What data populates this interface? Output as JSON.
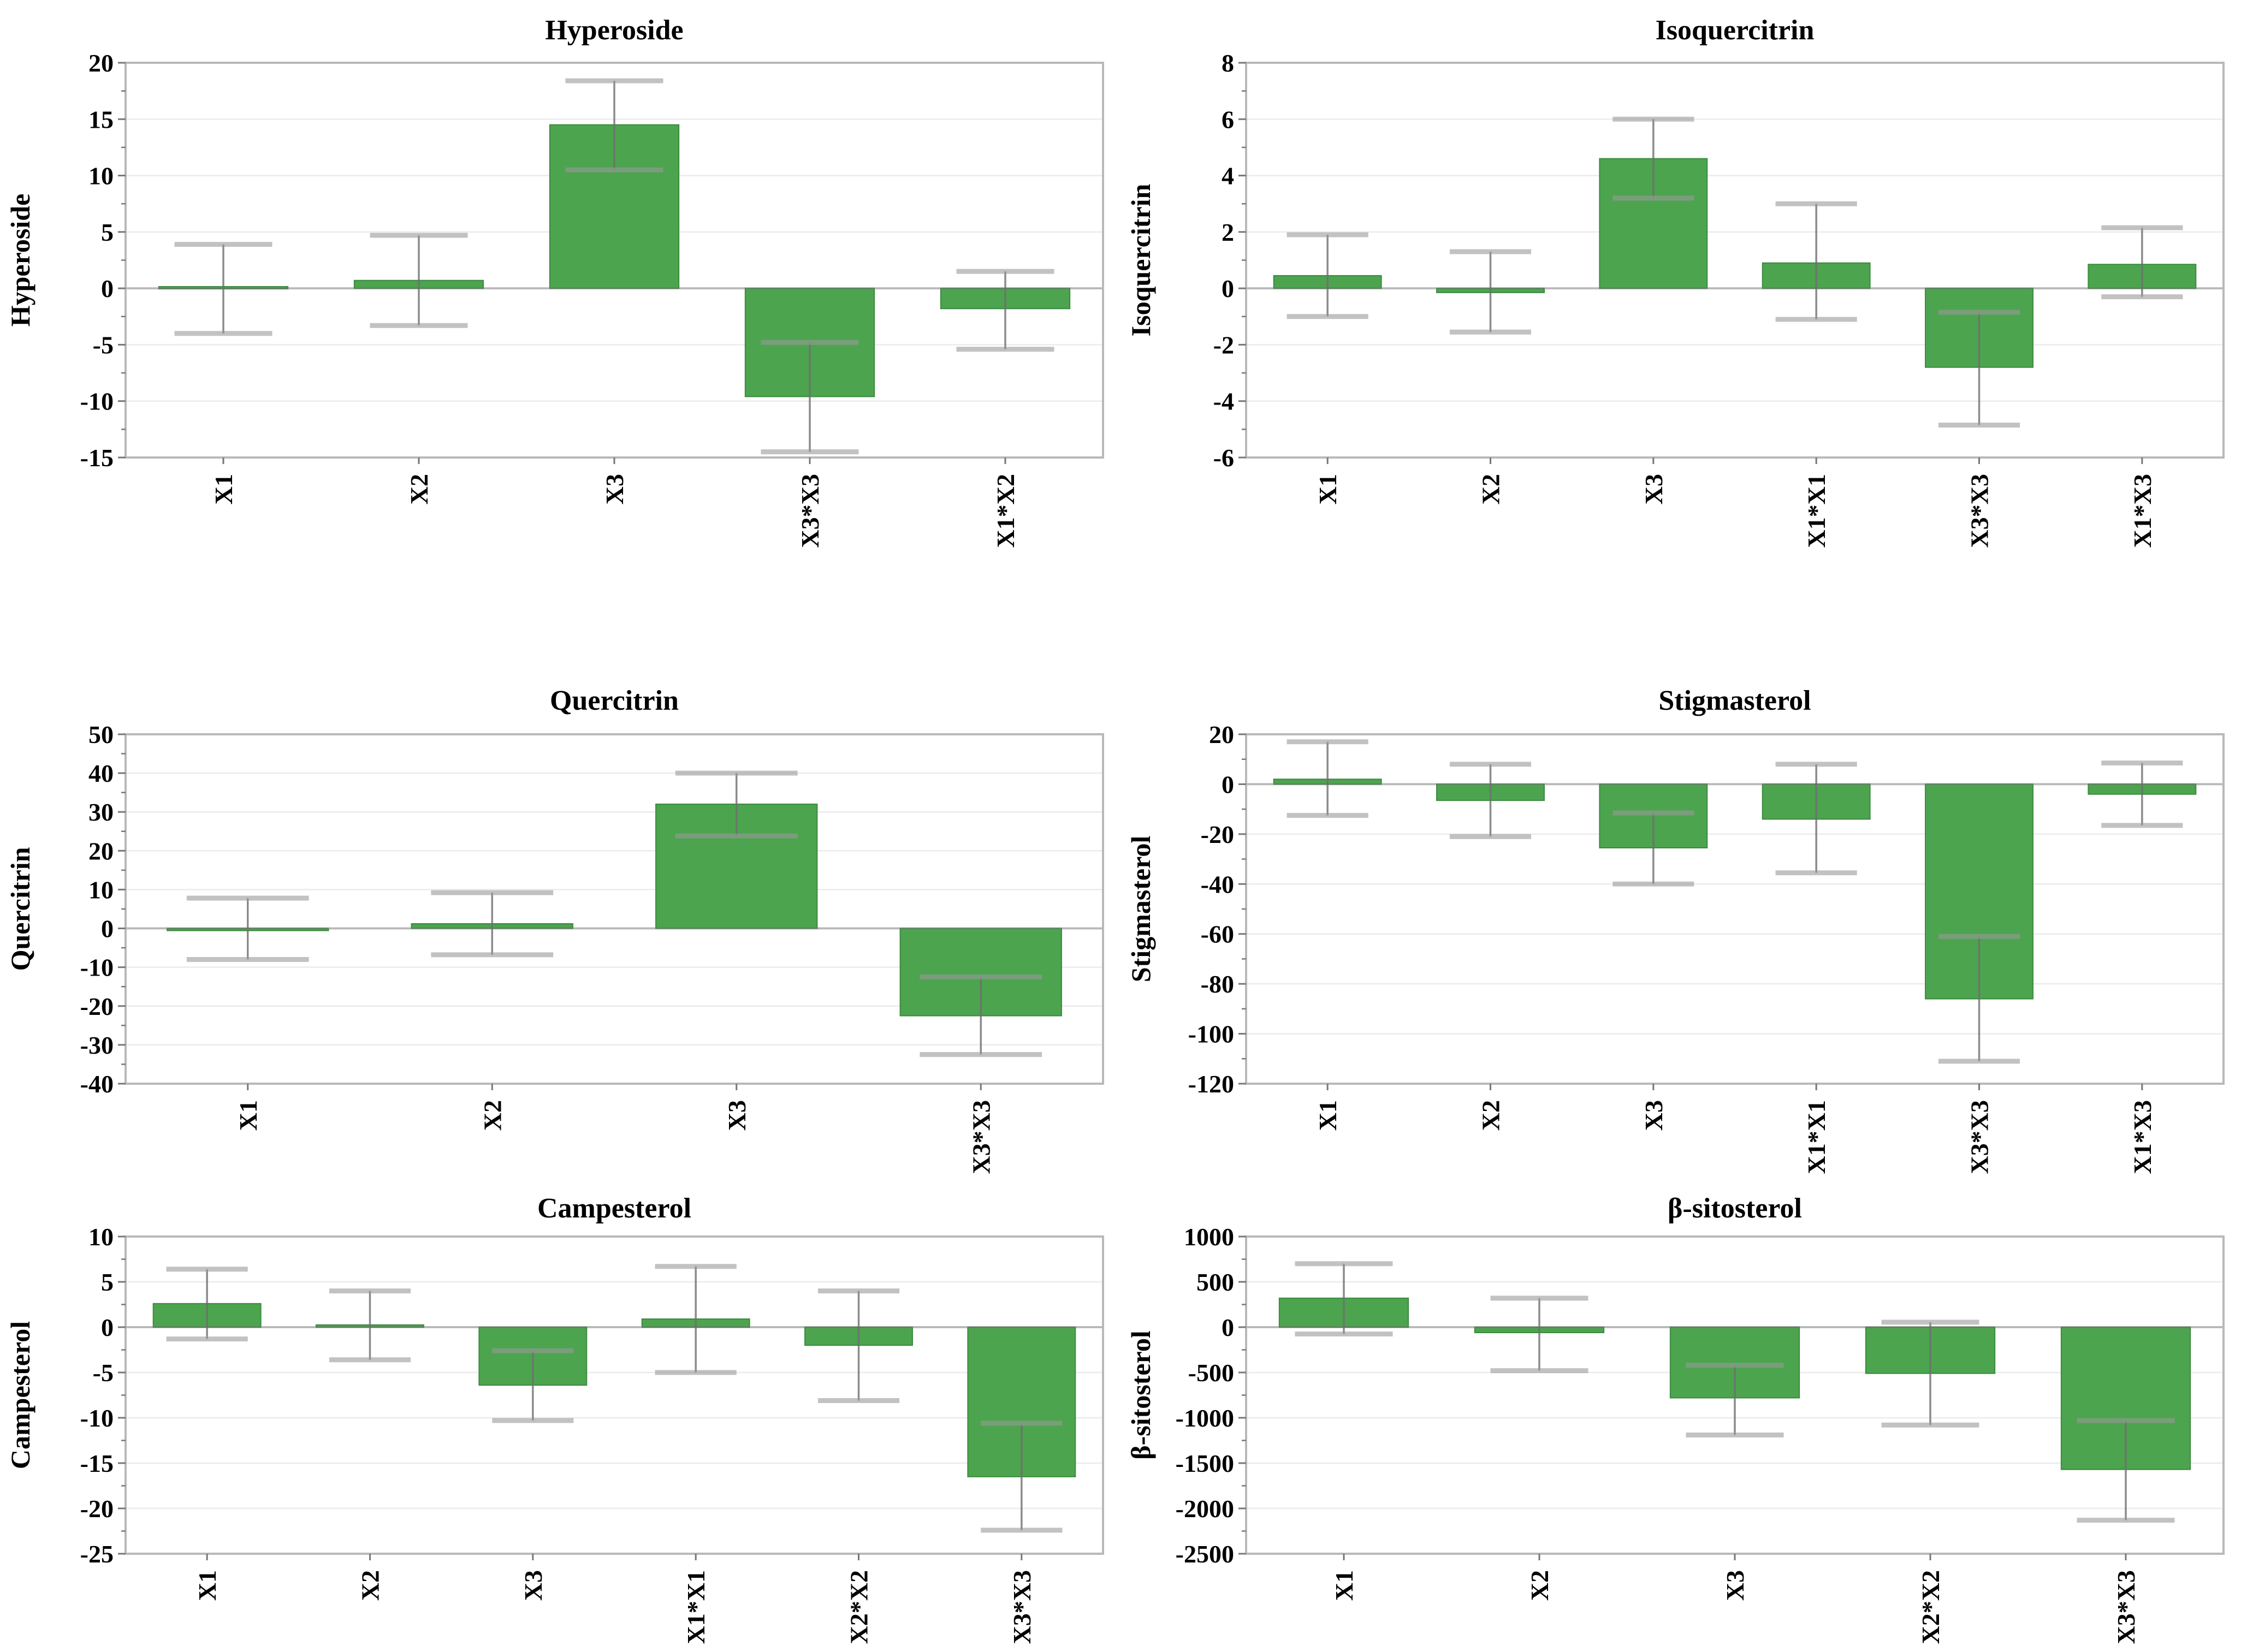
{
  "figure": {
    "background": "#ffffff",
    "bar_color": "#4DA44F",
    "bar_edge_color": "#3B8A3E",
    "error_line_color": "#6e6e6e",
    "error_cap_color": "#9a9a9a",
    "grid_color": "#ebebeb",
    "zero_line_color": "#787878",
    "frame_color": "#b9b9b9",
    "tick_color": "#777777",
    "text_color": "#000000"
  },
  "chart_data": [
    {
      "type": "bar",
      "title": "Hyperoside",
      "xlabel": "",
      "ylabel": "Hyperoside",
      "categories": [
        "X1",
        "X2",
        "X3",
        "X3*X3",
        "X1*X2"
      ],
      "values": [
        0.15,
        0.7,
        14.5,
        -9.6,
        -1.8
      ],
      "error_low": [
        -4.0,
        -3.3,
        10.5,
        -14.5,
        -5.4
      ],
      "error_high": [
        3.9,
        4.7,
        18.4,
        -4.8,
        1.5
      ],
      "ylim": [
        -15,
        20
      ],
      "ytick_step": 5,
      "grid": true,
      "legend": null
    },
    {
      "type": "bar",
      "title": "Isoquercitrin",
      "xlabel": "",
      "ylabel": "Isoquercitrin",
      "categories": [
        "X1",
        "X2",
        "X3",
        "X1*X1",
        "X3*X3",
        "X1*X3"
      ],
      "values": [
        0.45,
        -0.15,
        4.6,
        0.9,
        -2.8,
        0.85
      ],
      "error_low": [
        -1.0,
        -1.55,
        3.2,
        -1.1,
        -4.85,
        -0.3
      ],
      "error_high": [
        1.9,
        1.3,
        6.0,
        3.0,
        -0.85,
        2.15
      ],
      "ylim": [
        -6,
        8
      ],
      "ytick_step": 2,
      "grid": true,
      "legend": null
    },
    {
      "type": "bar",
      "title": "Quercitrin",
      "xlabel": "",
      "ylabel": "Quercitrin",
      "categories": [
        "X1",
        "X2",
        "X3",
        "X3*X3"
      ],
      "values": [
        -0.5,
        1.2,
        32,
        -22.5
      ],
      "error_low": [
        -8.0,
        -6.8,
        23.8,
        -32.5
      ],
      "error_high": [
        7.8,
        9.2,
        40.0,
        -12.5
      ],
      "ylim": [
        -40,
        50
      ],
      "ytick_step": 10,
      "grid": true,
      "legend": null
    },
    {
      "type": "bar",
      "title": "Stigmasterol",
      "xlabel": "",
      "ylabel": "Stigmasterol",
      "categories": [
        "X1",
        "X2",
        "X3",
        "X1*X1",
        "X3*X3",
        "X1*X3"
      ],
      "values": [
        2,
        -6.5,
        -25.5,
        -14,
        -86,
        -4
      ],
      "error_low": [
        -12.5,
        -21,
        -40,
        -35.5,
        -111,
        -16.5
      ],
      "error_high": [
        17,
        8,
        -11.5,
        8,
        -61,
        8.5
      ],
      "ylim": [
        -120,
        20
      ],
      "ytick_step": 20,
      "grid": true,
      "legend": null
    },
    {
      "type": "bar",
      "title": "Campesterol",
      "xlabel": "",
      "ylabel": "Campesterol",
      "categories": [
        "X1",
        "X2",
        "X3",
        "X1*X1",
        "X2*X2",
        "X3*X3"
      ],
      "values": [
        2.6,
        0.25,
        -6.4,
        0.9,
        -2.0,
        -16.5
      ],
      "error_low": [
        -1.3,
        -3.6,
        -10.3,
        -5.0,
        -8.1,
        -22.4
      ],
      "error_high": [
        6.4,
        4.0,
        -2.6,
        6.7,
        4.0,
        -10.6
      ],
      "ylim": [
        -25,
        10
      ],
      "ytick_step": 5,
      "grid": true,
      "legend": null
    },
    {
      "type": "bar",
      "title": "β-sitosterol",
      "xlabel": "",
      "ylabel": "β-sitosterol",
      "categories": [
        "X1",
        "X2",
        "X3",
        "X2*X2",
        "X3*X3"
      ],
      "values": [
        320,
        -60,
        -780,
        -510,
        -1570
      ],
      "error_low": [
        -75,
        -480,
        -1190,
        -1080,
        -2130
      ],
      "error_high": [
        700,
        320,
        -420,
        55,
        -1030
      ],
      "ylim": [
        -2500,
        1000
      ],
      "ytick_step": 500,
      "grid": true,
      "legend": null
    }
  ]
}
